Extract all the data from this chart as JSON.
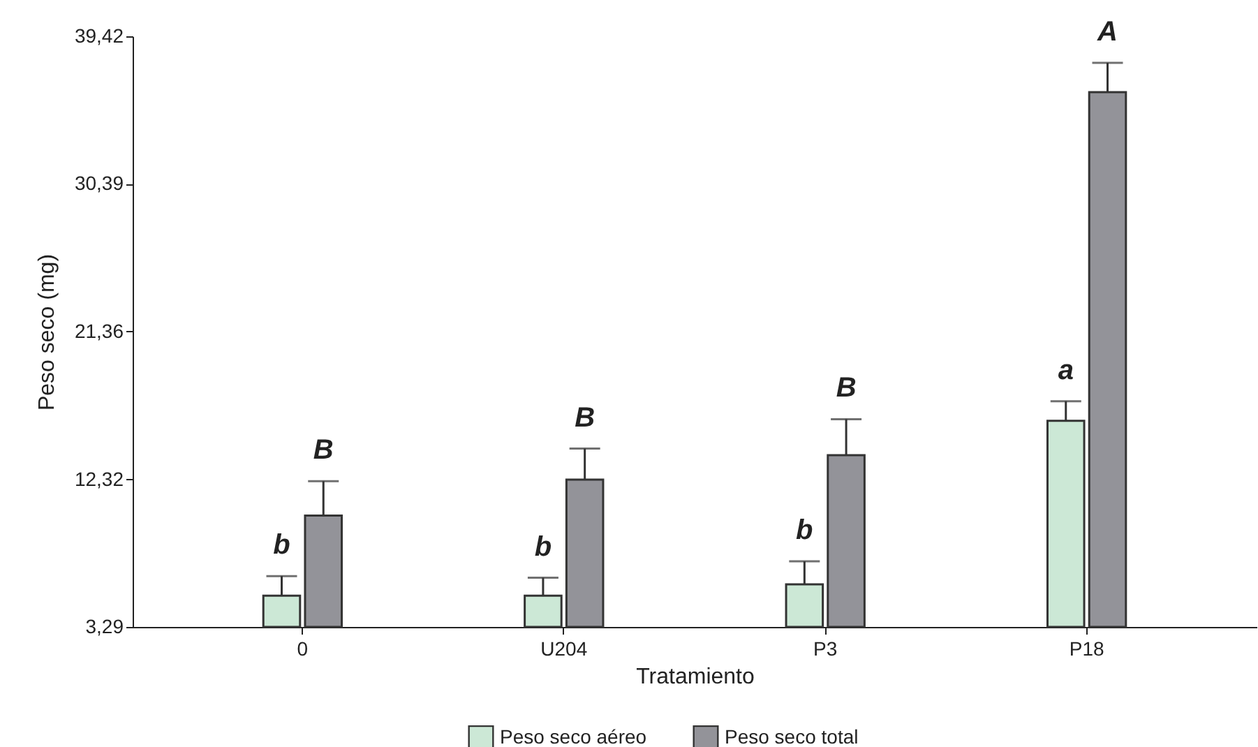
{
  "chart_data": {
    "type": "bar",
    "xlabel": "Tratamiento",
    "ylabel": "Peso seco (mg)",
    "categories": [
      "0",
      "U204",
      "P3",
      "P18"
    ],
    "series": [
      {
        "name": "Peso seco aéreo",
        "color": "#cce8d6",
        "values": [
          5.2,
          5.2,
          5.9,
          15.9
        ],
        "errors": [
          [
            5.2,
            6.4
          ],
          [
            5.2,
            6.3
          ],
          [
            5.9,
            7.3
          ],
          [
            15.9,
            17.1
          ]
        ]
      },
      {
        "name": "Peso seco total",
        "color": "#939399",
        "values": [
          10.1,
          12.3,
          13.8,
          36.0
        ],
        "errors": [
          [
            10.1,
            12.2
          ],
          [
            12.3,
            14.2
          ],
          [
            13.8,
            16.0
          ],
          [
            36.0,
            37.8
          ]
        ]
      }
    ],
    "ylim": [
      3.29,
      39.42
    ],
    "yticks": [
      {
        "value": 3.29,
        "label": "3,29"
      },
      {
        "value": 12.32,
        "label": "12,32"
      },
      {
        "value": 21.36,
        "label": "21,36"
      },
      {
        "value": 30.39,
        "label": "30,39"
      },
      {
        "value": 39.42,
        "label": "39,42"
      }
    ],
    "annotations": [
      {
        "text": "b",
        "x": "0",
        "y": 6.4
      },
      {
        "text": "B",
        "x": "0",
        "y": 12.2
      },
      {
        "text": "b",
        "x": "U204",
        "y": 6.3
      },
      {
        "text": "B",
        "x": "U204",
        "y": 14.2
      },
      {
        "text": "b",
        "x": "P3",
        "y": 7.3
      },
      {
        "text": "B",
        "x": "P3",
        "y": 16.0
      },
      {
        "text": "a",
        "x": "P18",
        "y": 17.1
      },
      {
        "text": "A",
        "x": "P18",
        "y": 37.8
      }
    ],
    "grid": false,
    "legend": "bottom"
  }
}
